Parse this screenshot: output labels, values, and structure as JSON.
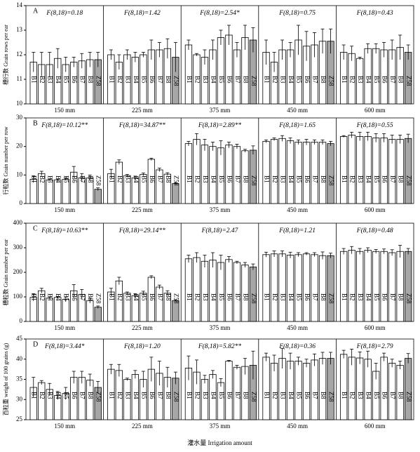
{
  "chart_data": [
    {
      "type": "bar",
      "title": "A",
      "ylabel": "穗行数 Grain rows per ear",
      "ylim": [
        10,
        14
      ],
      "yticks": [
        10,
        11,
        12,
        13,
        14
      ],
      "bar_labels": [
        "B1",
        "B2",
        "B3",
        "B4",
        "B5",
        "B6",
        "B7",
        "B8",
        "Z58"
      ],
      "bar_colors": [
        "#ffffff",
        "#ffffff",
        "#ffffff",
        "#ffffff",
        "#ffffff",
        "#ffffff",
        "#ffffff",
        "#ffffff",
        "#a6a6a6"
      ],
      "groups": [
        {
          "name": "150 mm",
          "annotation": "F(8,18)=0.18",
          "values": [
            11.7,
            11.6,
            11.6,
            11.85,
            11.6,
            11.7,
            11.75,
            11.8,
            11.8
          ],
          "errors": [
            0.4,
            0.5,
            0.5,
            0.4,
            0.3,
            0.2,
            0.3,
            0.3,
            0.3
          ]
        },
        {
          "name": "225 mm",
          "annotation": "F(8,18)=1.42",
          "values": [
            12.0,
            11.7,
            12.0,
            11.9,
            12.0,
            12.2,
            12.2,
            12.25,
            11.9
          ],
          "errors": [
            0.2,
            0.3,
            0.2,
            0.2,
            0.1,
            0.4,
            0.3,
            0.4,
            0.6
          ]
        },
        {
          "name": "375 mm",
          "annotation": "F(8,18)=2.54*",
          "values": [
            12.4,
            12.0,
            11.9,
            12.2,
            12.7,
            12.8,
            12.2,
            12.7,
            12.6
          ],
          "errors": [
            0.2,
            0.05,
            0.3,
            0.4,
            0.3,
            0.4,
            0.3,
            0.5,
            0.5
          ]
        },
        {
          "name": "450 mm",
          "annotation": "F(8,18)=0.75",
          "values": [
            12.1,
            11.7,
            12.2,
            12.2,
            12.6,
            12.35,
            12.4,
            12.55,
            12.55
          ],
          "errors": [
            0.5,
            0.4,
            0.4,
            0.3,
            0.6,
            0.6,
            0.5,
            0.5,
            0.5
          ]
        },
        {
          "name": "600 mm",
          "annotation": "F(8,18)=0.43",
          "values": [
            12.1,
            12.05,
            11.85,
            12.25,
            12.25,
            12.2,
            12.2,
            12.3,
            12.1
          ],
          "errors": [
            0.3,
            0.3,
            0.05,
            0.2,
            0.2,
            0.3,
            0.4,
            0.5,
            0.3
          ]
        }
      ]
    },
    {
      "type": "bar",
      "title": "B",
      "ylabel": "行粒数 Grain number per row",
      "ylim": [
        0,
        30
      ],
      "yticks": [
        0,
        10,
        20,
        30
      ],
      "bar_labels": [
        "B1",
        "B2",
        "B3",
        "B4",
        "B5",
        "B6",
        "B7",
        "B8",
        "Z58"
      ],
      "bar_colors": [
        "#ffffff",
        "#ffffff",
        "#ffffff",
        "#ffffff",
        "#ffffff",
        "#ffffff",
        "#ffffff",
        "#ffffff",
        "#a6a6a6"
      ],
      "groups": [
        {
          "name": "150 mm",
          "annotation": "F(8,18)=10.12**",
          "values": [
            8.5,
            10.5,
            8.3,
            8.3,
            8.5,
            11,
            9,
            9,
            5
          ],
          "errors": [
            1.2,
            0.8,
            0.3,
            0.3,
            0.5,
            2,
            1.5,
            1,
            0.5
          ]
        },
        {
          "name": "225 mm",
          "annotation": "F(8,18)=34.87**",
          "values": [
            10.5,
            14.5,
            9.8,
            9,
            10.2,
            15.5,
            11.8,
            10.3,
            7
          ],
          "errors": [
            1.5,
            0.8,
            0.4,
            0.6,
            0.5,
            0.4,
            0.6,
            0.5,
            0.3
          ]
        },
        {
          "name": "375 mm",
          "annotation": "F(8,18)=2.89**",
          "values": [
            21,
            22.5,
            20.5,
            20,
            19.5,
            20.5,
            20,
            18.5,
            18.7
          ],
          "errors": [
            0.8,
            2,
            2,
            1.5,
            2.5,
            1,
            0.8,
            0.5,
            1.5
          ]
        },
        {
          "name": "450 mm",
          "annotation": "F(8,18)=1.65",
          "values": [
            21.8,
            22.5,
            22.8,
            22,
            21.5,
            21.5,
            21.5,
            21.5,
            21
          ],
          "errors": [
            0.5,
            0.5,
            1,
            1,
            0.8,
            1,
            0.8,
            0.8,
            0.8
          ]
        },
        {
          "name": "600 mm",
          "annotation": "F(8,18)=0.55",
          "values": [
            23.5,
            24,
            23.5,
            23.5,
            23,
            23,
            22.5,
            22.5,
            22.8
          ],
          "errors": [
            0.3,
            1,
            1.5,
            1.5,
            1.5,
            1.5,
            1.5,
            1.5,
            1.5
          ]
        }
      ]
    },
    {
      "type": "bar",
      "title": "C",
      "ylabel": "穗粒数 Grain number per ear",
      "ylim": [
        0,
        400
      ],
      "yticks": [
        0,
        100,
        200,
        300,
        400
      ],
      "bar_labels": [
        "B1",
        "B2",
        "B3",
        "B4",
        "B5",
        "B6",
        "B7",
        "B8",
        "Z58"
      ],
      "bar_colors": [
        "#ffffff",
        "#ffffff",
        "#ffffff",
        "#ffffff",
        "#ffffff",
        "#ffffff",
        "#ffffff",
        "#ffffff",
        "#a6a6a6"
      ],
      "groups": [
        {
          "name": "150 mm",
          "annotation": "F(8,18)=10.63**",
          "values": [
            98,
            125,
            95,
            98,
            90,
            125,
            110,
            85,
            58
          ],
          "errors": [
            15,
            10,
            5,
            4,
            10,
            25,
            20,
            10,
            5
          ]
        },
        {
          "name": "225 mm",
          "annotation": "F(8,18)=29.14**",
          "values": [
            120,
            165,
            115,
            105,
            115,
            180,
            140,
            115,
            85
          ],
          "errors": [
            15,
            15,
            5,
            8,
            8,
            6,
            8,
            10,
            4
          ]
        },
        {
          "name": "375 mm",
          "annotation": "F(8,18)=2.47",
          "values": [
            255,
            260,
            245,
            250,
            240,
            252,
            240,
            230,
            222
          ],
          "errors": [
            15,
            20,
            25,
            30,
            30,
            12,
            5,
            10,
            12
          ]
        },
        {
          "name": "450 mm",
          "annotation": "F(8,18)=1.21",
          "values": [
            272,
            275,
            275,
            270,
            272,
            275,
            272,
            268,
            268
          ],
          "errors": [
            10,
            12,
            12,
            12,
            8,
            5,
            8,
            15,
            10
          ]
        },
        {
          "name": "600 mm",
          "annotation": "F(8,18)=0.48",
          "values": [
            285,
            290,
            285,
            290,
            285,
            285,
            280,
            285,
            285
          ],
          "errors": [
            12,
            15,
            12,
            10,
            8,
            10,
            12,
            25,
            12
          ]
        }
      ]
    },
    {
      "type": "bar",
      "title": "D",
      "ylabel": "百粒重 weight of 100 grains (g)",
      "xlabel": "灌水量 Irrigation amount",
      "ylim": [
        25,
        45
      ],
      "yticks": [
        25,
        30,
        35,
        40,
        45
      ],
      "bar_labels": [
        "B1",
        "B2",
        "B3",
        "B4",
        "B5",
        "B6",
        "B7",
        "B8",
        "Z58"
      ],
      "bar_colors": [
        "#ffffff",
        "#ffffff",
        "#ffffff",
        "#ffffff",
        "#ffffff",
        "#ffffff",
        "#ffffff",
        "#ffffff",
        "#a6a6a6"
      ],
      "groups": [
        {
          "name": "150 mm",
          "annotation": "F(8,18)=3.44*",
          "values": [
            33,
            34.2,
            32.5,
            31,
            31.5,
            35.5,
            35.5,
            34.8,
            33
          ],
          "errors": [
            2.5,
            0.5,
            1.5,
            1,
            1.5,
            1.5,
            1.5,
            1.5,
            1.5
          ]
        },
        {
          "name": "225 mm",
          "annotation": "F(8,18)=1.20",
          "values": [
            37.5,
            37.2,
            35,
            36.2,
            35,
            37.5,
            36.5,
            35.5,
            35.3
          ],
          "errors": [
            1.2,
            1.5,
            0.3,
            1,
            2,
            3,
            3,
            2.5,
            1.5
          ]
        },
        {
          "name": "375 mm",
          "annotation": "F(8,18)=5.82**",
          "values": [
            37.8,
            36.8,
            35,
            36.2,
            34.2,
            39.5,
            38,
            38.2,
            38.5
          ],
          "errors": [
            3,
            3,
            1,
            1,
            1,
            0.2,
            0.5,
            2,
            3.5
          ]
        },
        {
          "name": "450 mm",
          "annotation": "F(8,18)=0.36",
          "values": [
            40.5,
            39,
            40.2,
            39.5,
            39.5,
            39,
            39.8,
            40.2,
            40.2
          ],
          "errors": [
            1,
            2,
            2.5,
            2,
            1,
            1,
            1.5,
            1.5,
            1.5
          ]
        },
        {
          "name": "600 mm",
          "annotation": "F(8,18)=2.79",
          "values": [
            41.2,
            40.5,
            40.3,
            40,
            37,
            40.5,
            39,
            38.5,
            40.2
          ],
          "errors": [
            1,
            2,
            1.5,
            2,
            2,
            1,
            1,
            1,
            1.2
          ]
        }
      ]
    }
  ]
}
